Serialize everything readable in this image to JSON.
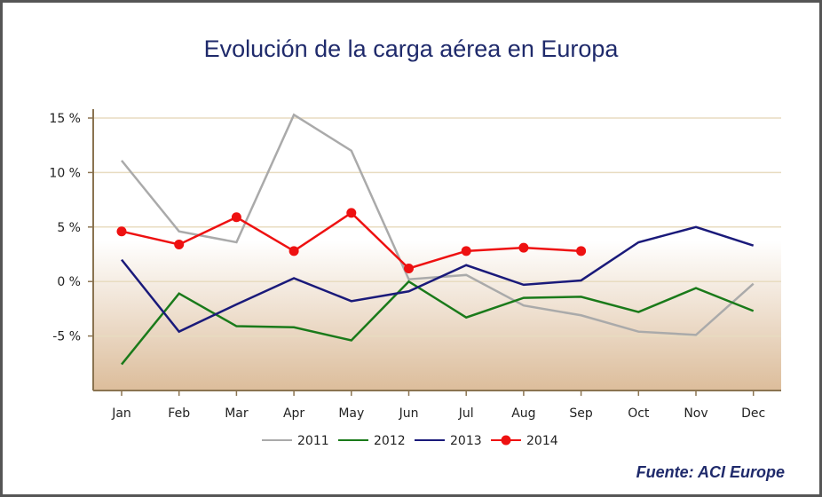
{
  "chart_data": {
    "type": "line",
    "title": "Evolución de la carga aérea en Europa",
    "source": "Fuente: ACI Europe",
    "categories": [
      "Jan",
      "Feb",
      "Mar",
      "Apr",
      "May",
      "Jun",
      "Jul",
      "Aug",
      "Sep",
      "Oct",
      "Nov",
      "Dec"
    ],
    "ylim": [
      -10,
      15
    ],
    "yticks": [
      15,
      10,
      5,
      0,
      -5
    ],
    "ytick_labels": [
      "15 %",
      "10 %",
      "5 %",
      "0 %",
      "-5 %"
    ],
    "grid": true,
    "legend_position": "bottom",
    "series": [
      {
        "name": "2011",
        "color": "#aaaaaa",
        "markers": false,
        "values": [
          11.1,
          4.6,
          3.6,
          15.3,
          12.0,
          0.2,
          0.6,
          -2.2,
          -3.1,
          -4.6,
          -4.9,
          -0.2
        ]
      },
      {
        "name": "2012",
        "color": "#1a7a1a",
        "markers": false,
        "values": [
          -7.6,
          -1.1,
          -4.1,
          -4.2,
          -5.4,
          0.0,
          -3.3,
          -1.5,
          -1.4,
          -2.8,
          -0.6,
          -2.7
        ]
      },
      {
        "name": "2013",
        "color": "#1a1a7a",
        "markers": false,
        "values": [
          2.0,
          -4.6,
          -2.1,
          0.3,
          -1.8,
          -0.9,
          1.5,
          -0.3,
          0.1,
          3.6,
          5.0,
          3.3
        ]
      },
      {
        "name": "2014",
        "color": "#ee1111",
        "markers": true,
        "values": [
          4.6,
          3.4,
          5.9,
          2.8,
          6.3,
          1.2,
          2.8,
          3.1,
          2.8,
          null,
          null,
          null
        ]
      }
    ]
  }
}
